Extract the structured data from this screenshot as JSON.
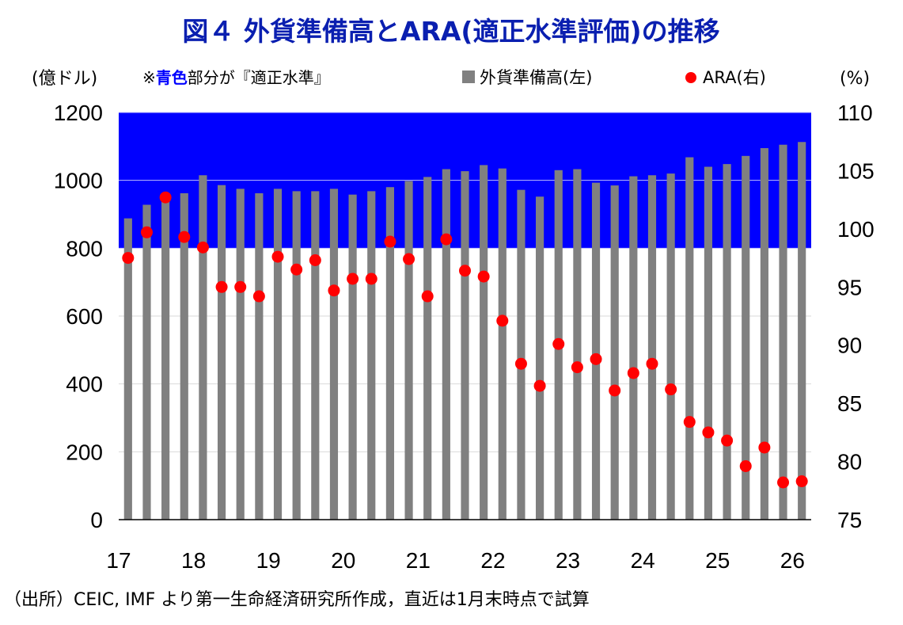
{
  "chart_data": {
    "type": "bar",
    "title": "図４ 外貨準備高とARA(適正水準評価)の推移",
    "left_axis_unit": "(億ドル)",
    "right_axis_unit": "(%)",
    "note_prefix": "※",
    "note_highlight": "青色",
    "note_suffix": "部分が『適正水準』",
    "legend": [
      {
        "name": "外貨準備高(左)",
        "marker": "square",
        "color": "#808080"
      },
      {
        "name": "ARA(右)",
        "marker": "circle",
        "color": "#ff0000"
      }
    ],
    "ylim_left": [
      0,
      1200
    ],
    "ylim_right": [
      75,
      110
    ],
    "yticks_left": [
      "0",
      "200",
      "400",
      "600",
      "800",
      "1000",
      "1200"
    ],
    "yticks_right": [
      "75",
      "80",
      "85",
      "90",
      "95",
      "100",
      "105",
      "110"
    ],
    "x_tick_labels": [
      "17",
      "18",
      "19",
      "20",
      "21",
      "22",
      "23",
      "24",
      "25",
      "26"
    ],
    "appropriate_band": {
      "from": 800,
      "to": 1200,
      "color": "#0000ff"
    },
    "series": [
      {
        "name": "外貨準備高",
        "axis": "left",
        "type": "bar",
        "color": "#808080",
        "values": [
          888,
          928,
          948,
          962,
          1015,
          986,
          975,
          962,
          975,
          968,
          968,
          975,
          958,
          968,
          980,
          998,
          1010,
          1033,
          1027,
          1045,
          1035,
          972,
          952,
          1030,
          1033,
          993,
          985,
          1012,
          1015,
          1020,
          1068,
          1040,
          1048,
          1072,
          1095,
          1105,
          1113
        ]
      },
      {
        "name": "ARA",
        "axis": "right",
        "type": "scatter",
        "color": "#ff0000",
        "values": [
          97.5,
          99.7,
          102.7,
          99.3,
          98.4,
          95.0,
          95.0,
          94.2,
          97.6,
          96.5,
          97.3,
          94.7,
          95.7,
          95.7,
          98.9,
          97.4,
          94.2,
          99.1,
          96.4,
          95.9,
          92.1,
          88.4,
          86.5,
          90.1,
          88.1,
          88.8,
          86.1,
          87.6,
          88.4,
          86.2,
          83.4,
          82.5,
          81.8,
          79.6,
          81.2,
          78.2,
          78.3
        ]
      }
    ]
  },
  "footer": {
    "source": "（出所）CEIC, IMF より第一生命経済研究所作成，直近は1月末時点で試算"
  }
}
